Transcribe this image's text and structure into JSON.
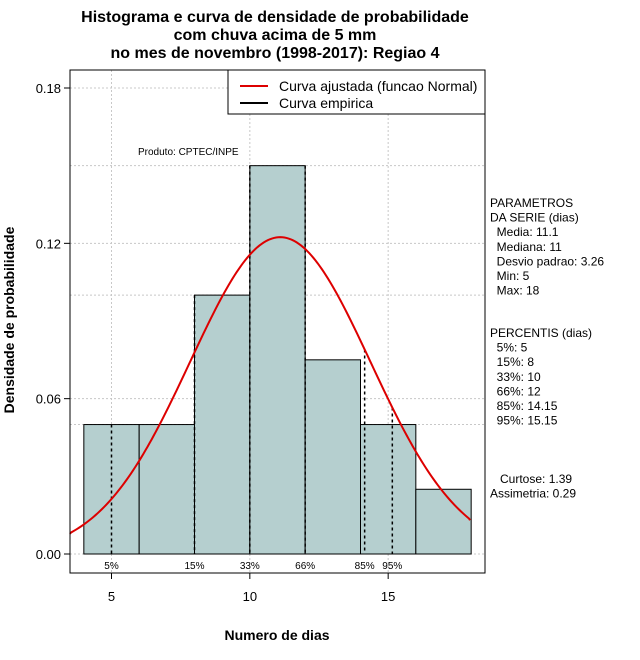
{
  "chart_data": {
    "type": "bar",
    "title_lines": [
      "Histograma e curva de densidade de probabilidade",
      "com chuva acima de 5 mm",
      "no mes de novembro (1998-2017): Regiao 4"
    ],
    "xlabel": "Numero de dias",
    "ylabel": "Densidade de probabilidade",
    "xlim": [
      3.5,
      18.5
    ],
    "ylim": [
      0,
      0.18
    ],
    "x_ticks": [
      5,
      10,
      15
    ],
    "y_ticks": [
      0.0,
      0.06,
      0.12,
      0.18
    ],
    "y_tick_labels": [
      "0.00",
      "0.06",
      "0.12",
      "0.18"
    ],
    "grid": true,
    "bar_color": "#b5cfcf",
    "curve_color": "#dd0000",
    "bins": [
      {
        "start": 4,
        "end": 6,
        "density": 0.05
      },
      {
        "start": 6,
        "end": 8,
        "density": 0.05
      },
      {
        "start": 8,
        "end": 10,
        "density": 0.1
      },
      {
        "start": 10,
        "end": 12,
        "density": 0.15
      },
      {
        "start": 12,
        "end": 14,
        "density": 0.075
      },
      {
        "start": 14,
        "end": 16,
        "density": 0.05
      },
      {
        "start": 16,
        "end": 18,
        "density": 0.025
      }
    ],
    "normal_fit": {
      "mean": 11.1,
      "sd": 3.26
    },
    "percentile_markers": [
      {
        "label": "5%",
        "x": 5
      },
      {
        "label": "15%",
        "x": 8
      },
      {
        "label": "33%",
        "x": 10
      },
      {
        "label": "66%",
        "x": 12
      },
      {
        "label": "85%",
        "x": 14.15
      },
      {
        "label": "95%",
        "x": 15.15
      }
    ],
    "source_note": "Produto: CPTEC/INPE",
    "legend": {
      "position": "top-right",
      "entries": [
        {
          "label": "Curva ajustada (funcao Normal)",
          "color": "#dd0000"
        },
        {
          "label": "Curva empirica",
          "color": "#000000"
        }
      ]
    },
    "parameters_block": [
      "PARAMETROS",
      "DA SERIE (dias)",
      "  Media: 11.1",
      "  Mediana: 11",
      "  Desvio padrao: 3.26",
      "  Min: 5",
      "  Max: 18"
    ],
    "percentiles_block": [
      "PERCENTIS (dias)",
      "  5%: 5",
      "  15%: 8",
      "  33%: 10",
      "  66%: 12",
      "  85%: 14.15",
      "  95%: 15.15"
    ],
    "shape_block": [
      "   Curtose: 1.39",
      "Assimetria: 0.29"
    ]
  }
}
